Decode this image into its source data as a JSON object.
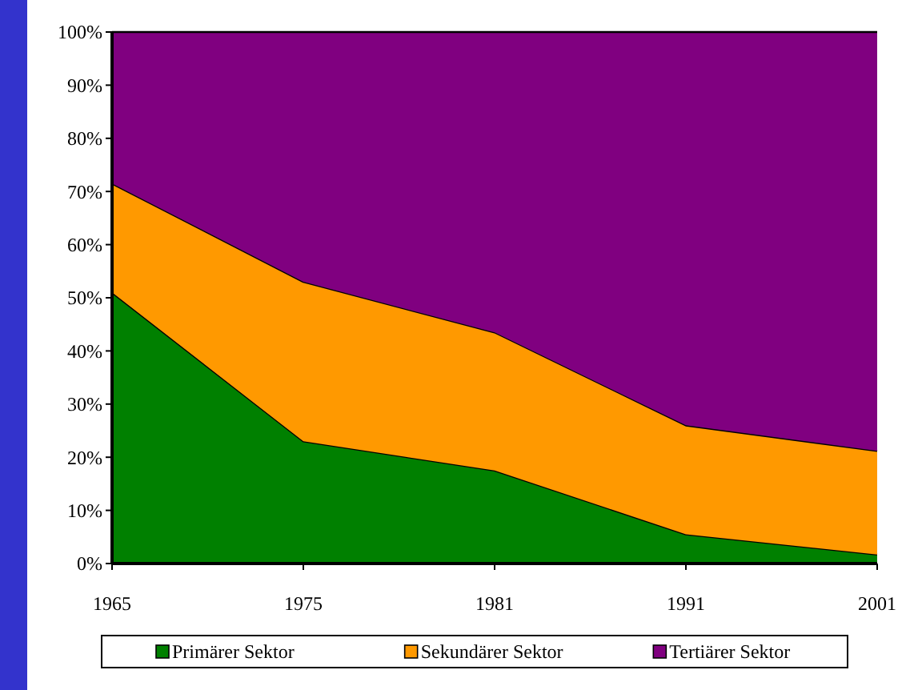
{
  "chart_data": {
    "type": "area",
    "stacked": true,
    "categories": [
      "1965",
      "1975",
      "1981",
      "1991",
      "2001"
    ],
    "ylim": [
      0,
      100
    ],
    "yticks": [
      {
        "value": 0,
        "label": "0%"
      },
      {
        "value": 10,
        "label": "10%"
      },
      {
        "value": 20,
        "label": "20%"
      },
      {
        "value": 30,
        "label": "30%"
      },
      {
        "value": 40,
        "label": "40%"
      },
      {
        "value": 50,
        "label": "50%"
      },
      {
        "value": 60,
        "label": "60%"
      },
      {
        "value": 70,
        "label": "70%"
      },
      {
        "value": 80,
        "label": "80%"
      },
      {
        "value": 90,
        "label": "90%"
      },
      {
        "value": 100,
        "label": "100%"
      }
    ],
    "series": [
      {
        "name": "Primärer Sektor",
        "color": "#008000",
        "values": [
          51,
          23,
          17.5,
          5.5,
          1.7
        ]
      },
      {
        "name": "Sekundärer Sektor",
        "color": "#ff9900",
        "values": [
          20.5,
          30,
          26,
          20.5,
          19.5
        ]
      },
      {
        "name": "Tertiärer Sektor",
        "color": "#800080",
        "values": [
          28.5,
          47,
          56.5,
          74,
          78.8
        ]
      }
    ],
    "legend": "bottom",
    "grid": false
  }
}
